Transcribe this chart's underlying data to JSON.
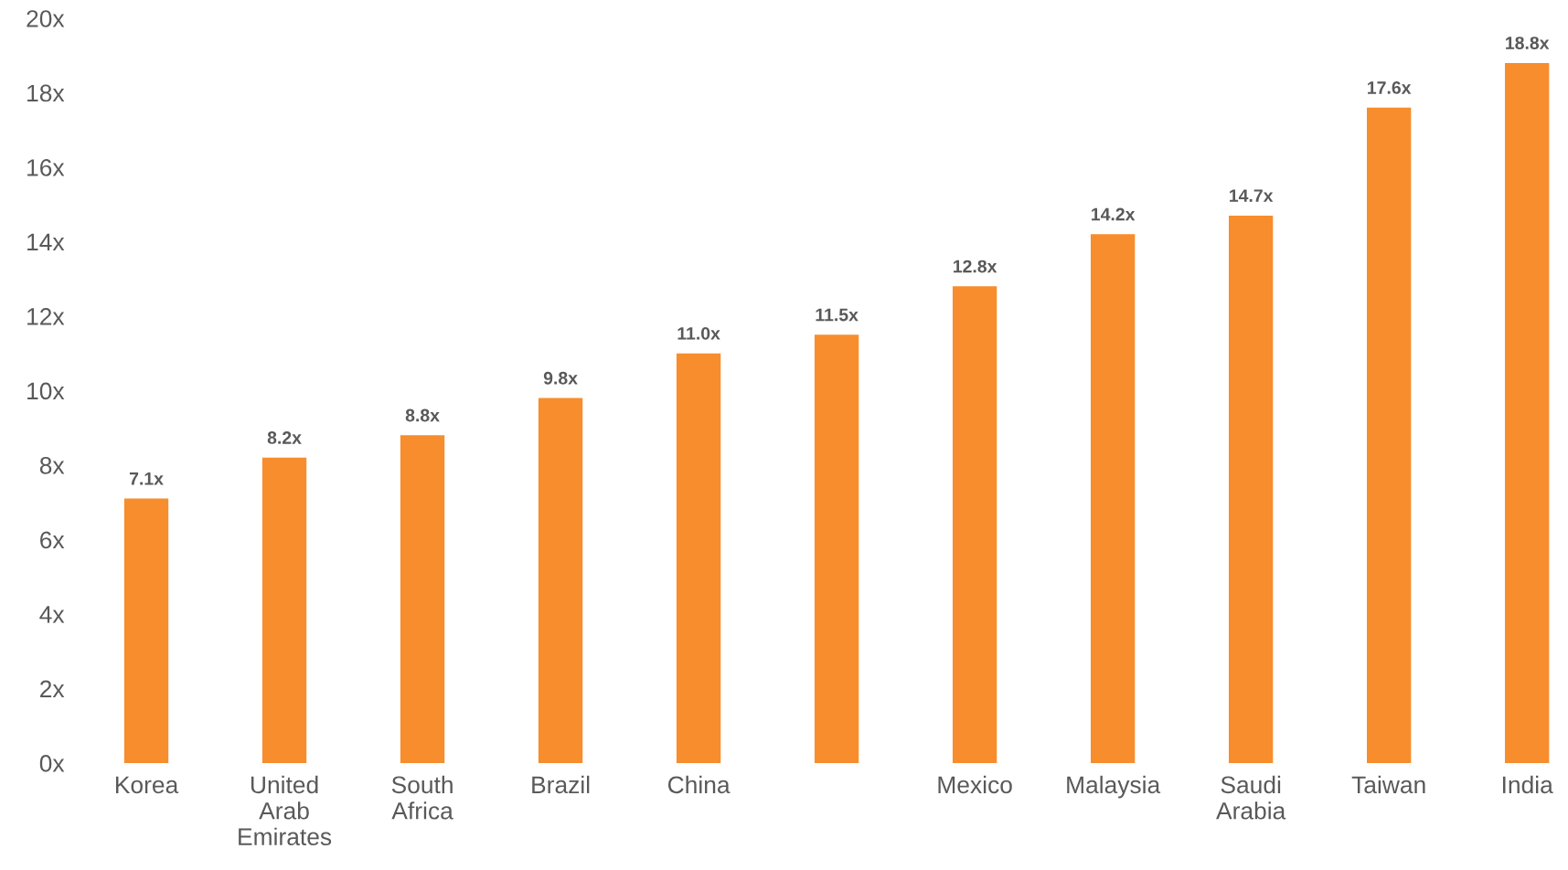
{
  "chart_data": {
    "type": "bar",
    "categories": [
      "Korea",
      "United\nArab\nEmirates",
      "South\nAfrica",
      "Brazil",
      "China",
      null,
      "Mexico",
      "Malaysia",
      "Saudi\nArabia",
      "Taiwan",
      "India"
    ],
    "values": [
      7.1,
      8.2,
      8.8,
      9.8,
      11.0,
      11.5,
      12.8,
      14.2,
      14.7,
      17.6,
      18.8
    ],
    "value_labels": [
      "7.1x",
      "8.2x",
      "8.8x",
      "9.8x",
      "11.0x",
      "11.5x",
      "12.8x",
      "14.2x",
      "14.7x",
      "17.6x",
      "18.8x"
    ],
    "color": "#f78d2d",
    "ylim": [
      0,
      20
    ],
    "yticks": [
      {
        "value": 0,
        "label": "0x"
      },
      {
        "value": 2,
        "label": "2x"
      },
      {
        "value": 4,
        "label": "4x"
      },
      {
        "value": 6,
        "label": "6x"
      },
      {
        "value": 8,
        "label": "8x"
      },
      {
        "value": 10,
        "label": "10x"
      },
      {
        "value": 12,
        "label": "12x"
      },
      {
        "value": 14,
        "label": "14x"
      },
      {
        "value": 16,
        "label": "16x"
      },
      {
        "value": 18,
        "label": "18x"
      },
      {
        "value": 20,
        "label": "20x"
      }
    ],
    "grid": false,
    "legend": false
  }
}
